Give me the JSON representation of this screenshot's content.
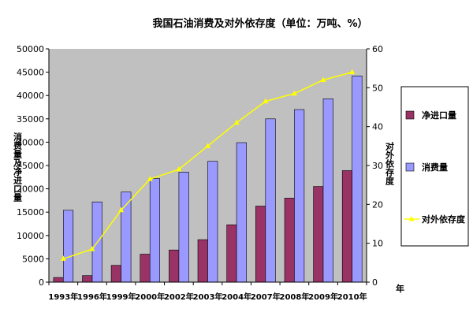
{
  "chart_data": {
    "type": "bar",
    "title": "我国石油消费及对外依存度（单位：万吨、%）",
    "categories": [
      "1993年",
      "1996年",
      "1999年",
      "2000年",
      "2002年",
      "2003年",
      "2004年",
      "2007年",
      "2008年",
      "2009年",
      "2010年"
    ],
    "x_unit": "年",
    "ylabel": "消费量及净进口量",
    "ylabel_right": "对外依存度",
    "ylim": [
      0,
      50000
    ],
    "ylim_right": [
      0,
      60
    ],
    "yticks": [
      "0",
      "5000",
      "10000",
      "15000",
      "20000",
      "25000",
      "30000",
      "35000",
      "40000",
      "45000",
      "50000"
    ],
    "yticks_right": [
      "0",
      "10",
      "20",
      "30",
      "40",
      "50",
      "60"
    ],
    "series": [
      {
        "name": "净进口量",
        "type": "bar",
        "axis": "left",
        "color": "#993366",
        "values": [
          1000,
          1400,
          3600,
          6000,
          6900,
          9100,
          12300,
          16300,
          18000,
          20500,
          23900
        ]
      },
      {
        "name": "消费量",
        "type": "bar",
        "axis": "left",
        "color": "#9999ff",
        "values": [
          15400,
          17200,
          19300,
          22200,
          23600,
          25900,
          29900,
          35000,
          37000,
          39300,
          44200
        ]
      },
      {
        "name": "对外依存度",
        "type": "line",
        "axis": "right",
        "color": "#ffff00",
        "values": [
          6,
          8.5,
          18.5,
          26.5,
          29,
          35,
          41,
          46.5,
          48.5,
          52,
          54
        ]
      }
    ],
    "plot_background": "#c0c0c0",
    "grid": false,
    "legend_position": "right"
  }
}
